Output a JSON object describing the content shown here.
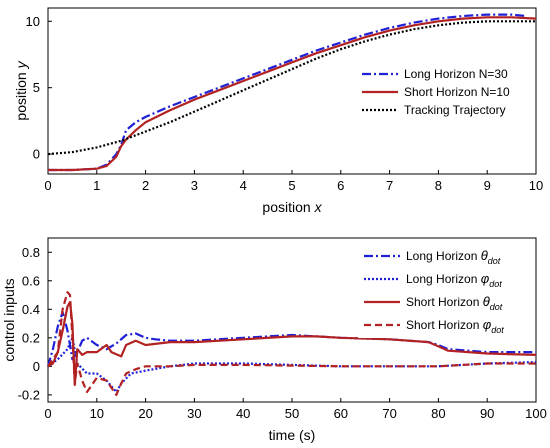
{
  "chart_data": [
    {
      "type": "line",
      "title": "",
      "xlabel": "position",
      "xlabel_var": "x",
      "ylabel": "position",
      "ylabel_var": "y",
      "xlim": [
        0,
        10
      ],
      "ylim": [
        -1.5,
        11
      ],
      "xticks": [
        "0",
        "1",
        "2",
        "3",
        "4",
        "5",
        "6",
        "7",
        "8",
        "9",
        "10"
      ],
      "yticks": [
        "0",
        "5",
        "10"
      ],
      "grid": false,
      "legend_position": "right-center",
      "series": [
        {
          "name": "Long Horizon N=30",
          "color": "#1f1fd6",
          "style": "dashdot",
          "x": [
            0,
            0.5,
            1.0,
            1.2,
            1.4,
            1.5,
            1.6,
            1.8,
            2.0,
            2.5,
            3.0,
            3.5,
            4.0,
            4.5,
            5.0,
            5.5,
            6.0,
            6.5,
            7.0,
            7.5,
            8.0,
            8.5,
            9.0,
            9.5,
            9.8
          ],
          "y": [
            -1.2,
            -1.2,
            -1.1,
            -0.8,
            0.0,
            0.7,
            1.8,
            2.4,
            2.8,
            3.6,
            4.3,
            5.0,
            5.7,
            6.4,
            7.1,
            7.8,
            8.4,
            9.0,
            9.5,
            9.9,
            10.2,
            10.4,
            10.5,
            10.5,
            10.4
          ]
        },
        {
          "name": "Short Horizon N=10",
          "color": "#b22222",
          "style": "solid",
          "x": [
            0,
            0.5,
            1.0,
            1.2,
            1.4,
            1.5,
            1.6,
            1.8,
            2.0,
            2.5,
            3.0,
            3.5,
            4.0,
            4.5,
            5.0,
            5.5,
            6.0,
            6.5,
            7.0,
            7.5,
            8.0,
            8.5,
            9.0,
            9.5,
            10.0
          ],
          "y": [
            -1.2,
            -1.2,
            -1.1,
            -0.9,
            -0.2,
            0.6,
            1.1,
            1.8,
            2.4,
            3.3,
            4.1,
            4.8,
            5.5,
            6.2,
            6.9,
            7.6,
            8.2,
            8.8,
            9.3,
            9.7,
            10.0,
            10.2,
            10.3,
            10.3,
            10.2
          ]
        },
        {
          "name": "Tracking Trajectory",
          "color": "#000000",
          "style": "dotted",
          "x": [
            0,
            0.5,
            1.0,
            1.5,
            2.0,
            2.5,
            3.0,
            3.5,
            4.0,
            4.5,
            5.0,
            5.5,
            6.0,
            6.5,
            7.0,
            7.5,
            8.0,
            8.5,
            9.0,
            9.5,
            10.0
          ],
          "y": [
            0.0,
            0.15,
            0.5,
            1.0,
            1.7,
            2.4,
            3.2,
            4.0,
            4.8,
            5.6,
            6.4,
            7.2,
            7.9,
            8.5,
            9.0,
            9.4,
            9.7,
            9.9,
            10.0,
            10.0,
            10.0
          ]
        }
      ]
    },
    {
      "type": "line",
      "title": "",
      "xlabel": "time (s)",
      "ylabel": "control inputs",
      "xlim": [
        0,
        100
      ],
      "ylim": [
        -0.25,
        0.9
      ],
      "xticks": [
        "0",
        "10",
        "20",
        "30",
        "40",
        "50",
        "60",
        "70",
        "80",
        "90",
        "100"
      ],
      "yticks": [
        "-0.2",
        "0",
        "0.2",
        "0.4",
        "0.6",
        "0.8"
      ],
      "grid": false,
      "legend_position": "top-right",
      "series": [
        {
          "name": "Long Horizon",
          "subscript_symbol": "θ",
          "subscript": "dot",
          "color": "#1f1fd6",
          "style": "dashdot",
          "x": [
            0,
            1,
            2,
            3,
            4,
            5,
            6,
            7,
            8,
            10,
            12,
            14,
            16,
            18,
            20,
            22,
            25,
            30,
            40,
            50,
            60,
            70,
            78,
            80,
            82,
            90,
            100
          ],
          "y": [
            0.0,
            0.12,
            0.28,
            0.38,
            0.25,
            0.05,
            0.1,
            0.18,
            0.2,
            0.15,
            0.12,
            0.16,
            0.22,
            0.23,
            0.2,
            0.19,
            0.18,
            0.18,
            0.2,
            0.22,
            0.2,
            0.19,
            0.17,
            0.15,
            0.12,
            0.1,
            0.1
          ]
        },
        {
          "name": "Long Horizon",
          "subscript_symbol": "φ",
          "subscript": "dot",
          "color": "#1f1fd6",
          "style": "dotted",
          "x": [
            0,
            2,
            4,
            5,
            6,
            8,
            10,
            12,
            14,
            15,
            17,
            20,
            25,
            30,
            40,
            60,
            80,
            90,
            100
          ],
          "y": [
            0.0,
            0.05,
            0.12,
            0.2,
            0.02,
            -0.05,
            -0.05,
            -0.1,
            -0.18,
            -0.12,
            -0.05,
            -0.03,
            0.0,
            0.02,
            0.02,
            0.0,
            0.0,
            0.02,
            0.03
          ]
        },
        {
          "name": "Short Horizon",
          "subscript_symbol": "θ",
          "subscript": "dot",
          "color": "#b22222",
          "style": "solid",
          "x": [
            0,
            1,
            2,
            3,
            4,
            4.5,
            5,
            5.5,
            6,
            7,
            8,
            10,
            12,
            13,
            15,
            16,
            18,
            20,
            25,
            30,
            40,
            50,
            55,
            60,
            70,
            78,
            80,
            82,
            90,
            100
          ],
          "y": [
            0.0,
            0.02,
            0.1,
            0.25,
            0.42,
            0.45,
            0.3,
            -0.13,
            0.12,
            0.08,
            0.1,
            0.1,
            0.15,
            0.1,
            0.07,
            0.15,
            0.18,
            0.15,
            0.17,
            0.17,
            0.19,
            0.21,
            0.21,
            0.2,
            0.19,
            0.17,
            0.14,
            0.11,
            0.09,
            0.08
          ]
        },
        {
          "name": "Short Horizon",
          "subscript_symbol": "φ",
          "subscript": "dot",
          "color": "#b22222",
          "style": "dashed",
          "x": [
            0,
            2,
            3,
            4,
            4.5,
            5,
            5.5,
            6,
            7,
            8,
            10,
            12,
            14,
            15,
            16,
            18,
            20,
            25,
            30,
            40,
            60,
            80,
            90,
            100
          ],
          "y": [
            0.0,
            0.1,
            0.4,
            0.52,
            0.5,
            0.2,
            -0.12,
            0.02,
            -0.1,
            -0.18,
            -0.08,
            -0.1,
            -0.2,
            -0.12,
            -0.05,
            -0.02,
            0.0,
            0.0,
            0.01,
            0.01,
            0.0,
            0.0,
            0.02,
            0.02
          ]
        }
      ]
    }
  ]
}
